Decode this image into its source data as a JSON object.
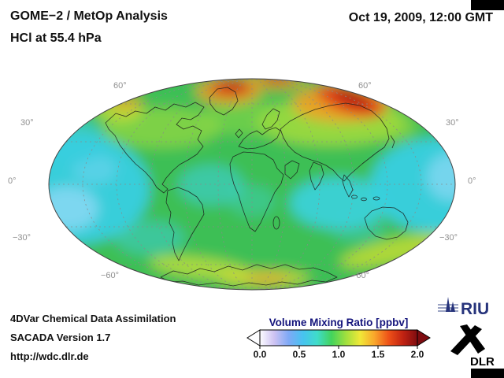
{
  "header": {
    "title_line1": "GOME−2 / MetOp Analysis",
    "title_line2": "HCl at 55.4 hPa",
    "timestamp": "Oct 19, 2009, 12:00 GMT"
  },
  "map": {
    "projection_label": "global Mollweide projection with coastlines and dashed graticule",
    "latitude_labels": {
      "left": [
        "60°",
        "30°",
        "0°",
        "−30°",
        "−60°"
      ],
      "right": [
        "60°",
        "30°",
        "0°",
        "−30°",
        "−60°"
      ]
    }
  },
  "colorbar": {
    "title": "Volume Mixing Ratio [ppbv]",
    "ticks": [
      "0.0",
      "0.5",
      "1.0",
      "1.5",
      "2.0"
    ],
    "gradient": [
      "#fdfdff",
      "#cdc2f2",
      "#7fa9f6",
      "#47c3f0",
      "#3fdcca",
      "#43d35c",
      "#9fdf3e",
      "#f0e838",
      "#f9a62b",
      "#ee5118",
      "#c02212",
      "#7e0c10"
    ]
  },
  "chart_data": {
    "type": "heatmap",
    "title": "GOME−2 / MetOp Analysis — HCl at 55.4 hPa",
    "datetime": "Oct 19, 2009, 12:00 GMT",
    "units": "ppbv",
    "value_range": [
      0.0,
      2.0
    ],
    "colorbar_label": "Volume Mixing Ratio [ppbv]",
    "approx_zonal_means_ppbv": {
      "60N_90N": 1.6,
      "30N_60N": 1.1,
      "0_30N": 0.7,
      "0_30S": 0.75,
      "30S_60S": 1.05,
      "60S_90S": 1.2
    },
    "maxima": [
      {
        "region": "northern Siberia high latitudes",
        "approx_value": 2.0
      },
      {
        "region": "northern Canada / Greenland",
        "approx_value": 1.9
      },
      {
        "region": "streak near 60S south of Australia / New Zealand",
        "approx_value": 1.4
      },
      {
        "region": "arc over Antarctica",
        "approx_value": 1.4
      },
      {
        "region": "streak near 60S over southern South America / South Atlantic",
        "approx_value": 1.3
      }
    ],
    "minima": [
      {
        "region": "tropical Pacific and Indian Ocean",
        "approx_value": 0.5
      }
    ]
  },
  "footer": {
    "lines": [
      "4DVar Chemical Data Assimilation",
      "SACADA Version 1.7",
      "http://wdc.dlr.de"
    ]
  },
  "logos": {
    "riu_text": "RIU",
    "dlr_text": "DLR"
  }
}
